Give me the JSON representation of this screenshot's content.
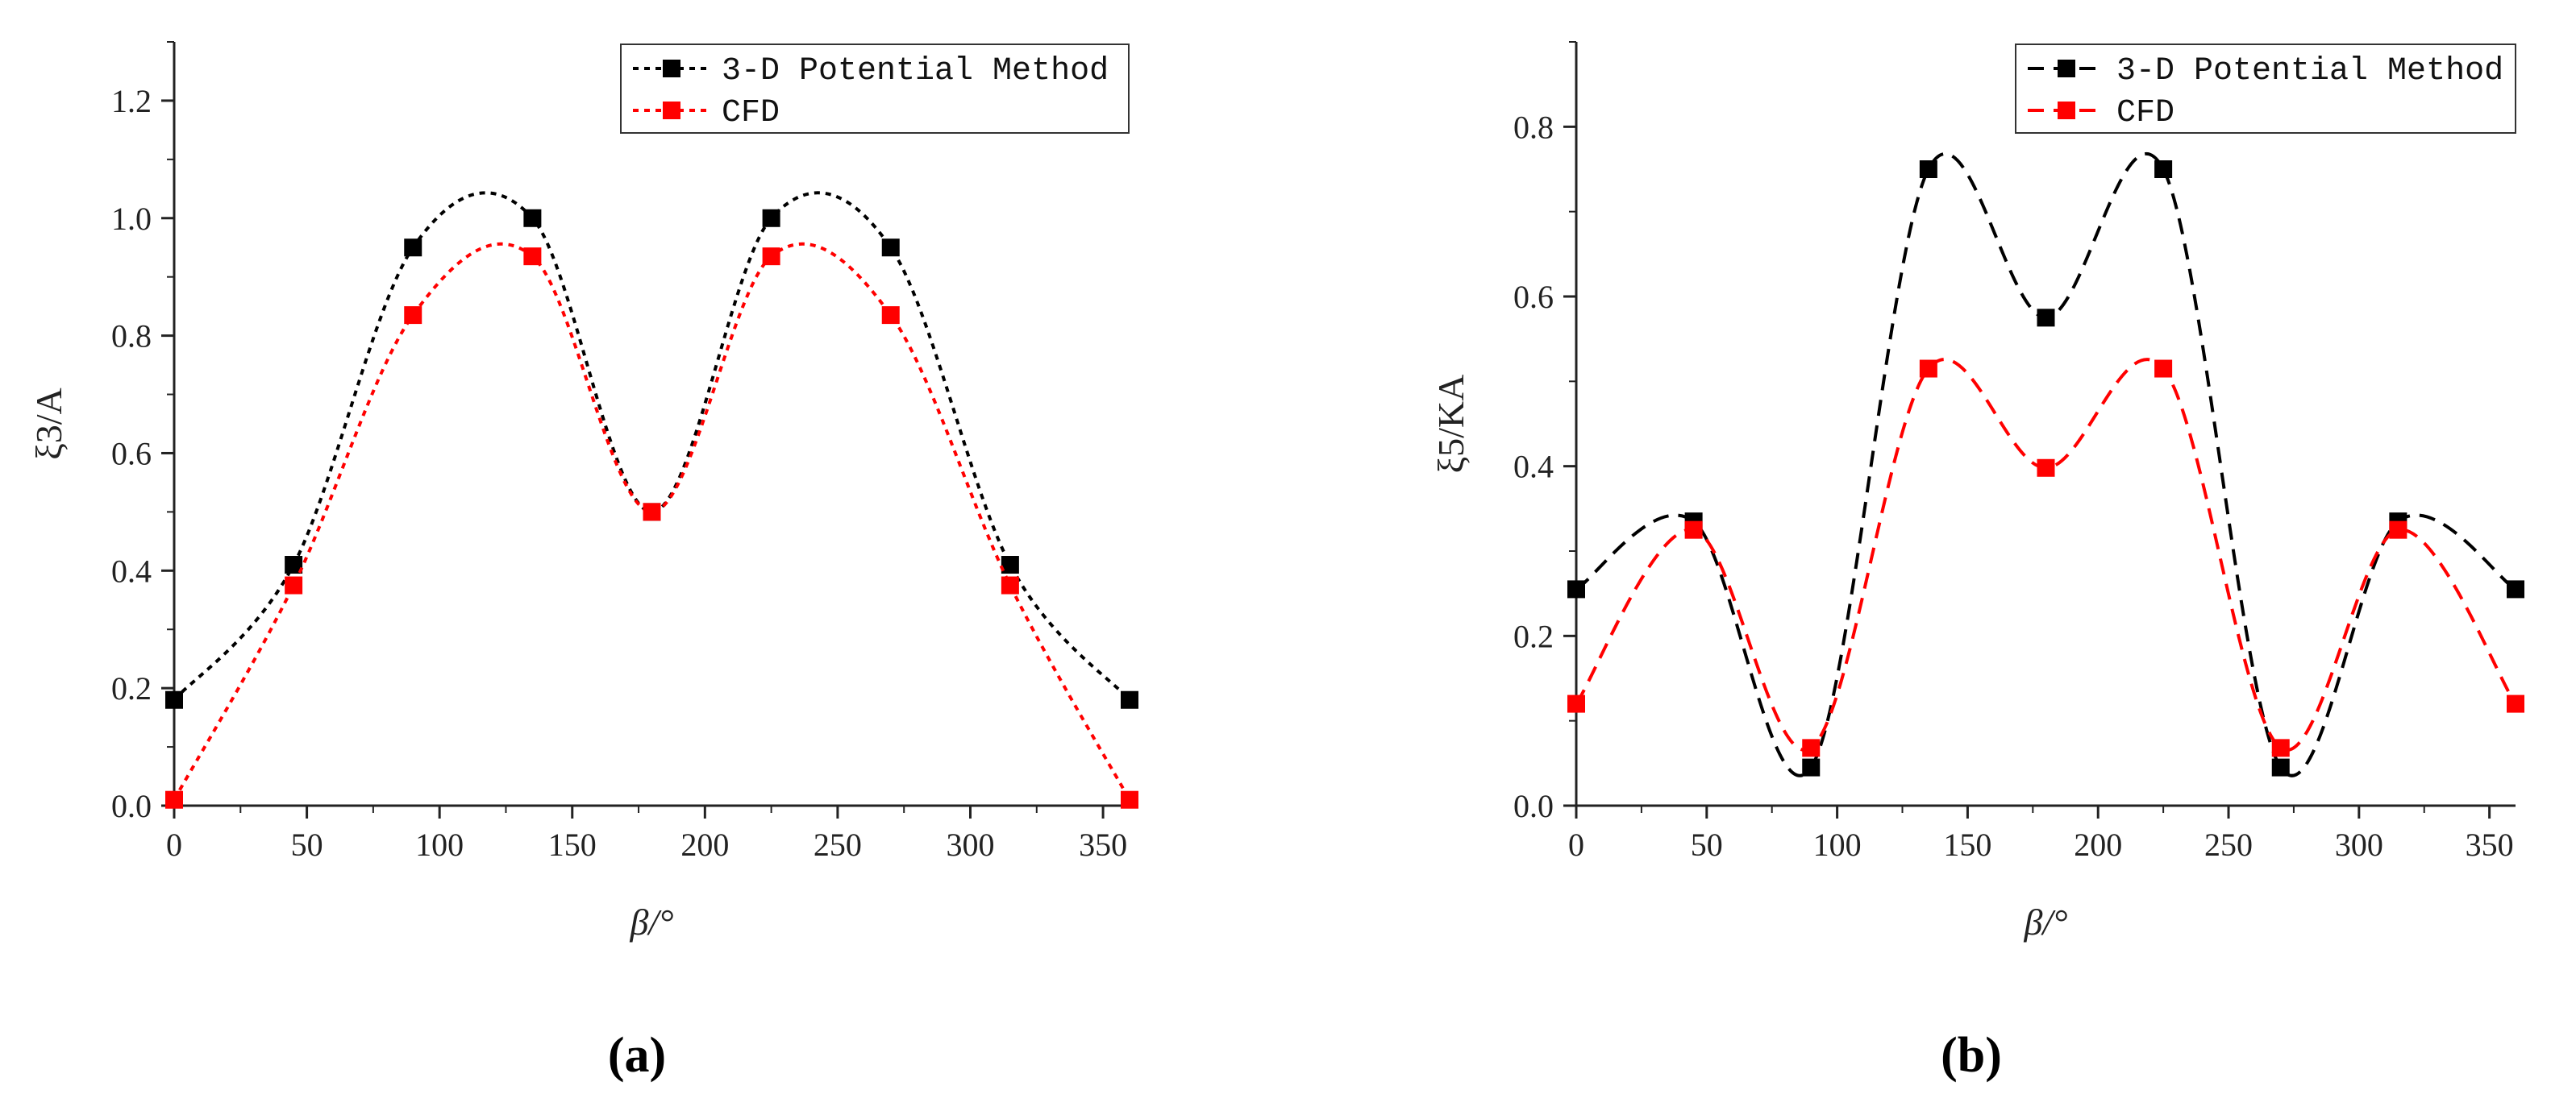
{
  "chart_data": [
    {
      "type": "line",
      "panel_label": "(a)",
      "xlabel": "β/°",
      "ylabel": "ξ3/A",
      "xlim": [
        0,
        360
      ],
      "ylim": [
        0,
        1.3
      ],
      "xticks": [
        0,
        50,
        100,
        150,
        200,
        250,
        300,
        350
      ],
      "yticks": [
        0.0,
        0.2,
        0.4,
        0.6,
        0.8,
        1.0,
        1.2
      ],
      "xtick_labels": [
        "0",
        "50",
        "100",
        "150",
        "200",
        "250",
        "300",
        "350"
      ],
      "ytick_labels": [
        "0.0",
        "0.2",
        "0.4",
        "0.6",
        "0.8",
        "1.0",
        "1.2"
      ],
      "grid": false,
      "legend_position": "top-right",
      "series": [
        {
          "name": "3-D Potential Method",
          "color": "#000000",
          "line_style": "dotted",
          "x": [
            0,
            45,
            90,
            135,
            180,
            225,
            270,
            315,
            360
          ],
          "values": [
            0.18,
            0.41,
            0.95,
            1.0,
            0.5,
            1.0,
            0.95,
            0.41,
            0.18
          ]
        },
        {
          "name": "CFD",
          "color": "#ff0000",
          "line_style": "dotted",
          "x": [
            0,
            45,
            90,
            135,
            180,
            225,
            270,
            315,
            360
          ],
          "values": [
            0.01,
            0.375,
            0.835,
            0.935,
            0.5,
            0.935,
            0.835,
            0.375,
            0.01
          ]
        }
      ]
    },
    {
      "type": "line",
      "panel_label": "(b)",
      "xlabel": "β/°",
      "ylabel": "ξ5/KA",
      "xlim": [
        0,
        360
      ],
      "ylim": [
        0,
        0.9
      ],
      "xticks": [
        0,
        50,
        100,
        150,
        200,
        250,
        300,
        350
      ],
      "yticks": [
        0.0,
        0.2,
        0.4,
        0.6,
        0.8
      ],
      "xtick_labels": [
        "0",
        "50",
        "100",
        "150",
        "200",
        "250",
        "300",
        "350"
      ],
      "ytick_labels": [
        "0.0",
        "0.2",
        "0.4",
        "0.6",
        "0.8"
      ],
      "grid": false,
      "legend_position": "top-right",
      "series": [
        {
          "name": "3-D Potential Method",
          "color": "#000000",
          "line_style": "dashed",
          "x": [
            0,
            45,
            90,
            135,
            180,
            225,
            270,
            315,
            360
          ],
          "values": [
            0.255,
            0.335,
            0.045,
            0.75,
            0.575,
            0.75,
            0.045,
            0.335,
            0.255
          ]
        },
        {
          "name": "CFD",
          "color": "#ff0000",
          "line_style": "dashed",
          "x": [
            0,
            45,
            90,
            135,
            180,
            225,
            270,
            315,
            360
          ],
          "values": [
            0.12,
            0.325,
            0.068,
            0.515,
            0.398,
            0.515,
            0.068,
            0.325,
            0.12
          ]
        }
      ]
    }
  ]
}
